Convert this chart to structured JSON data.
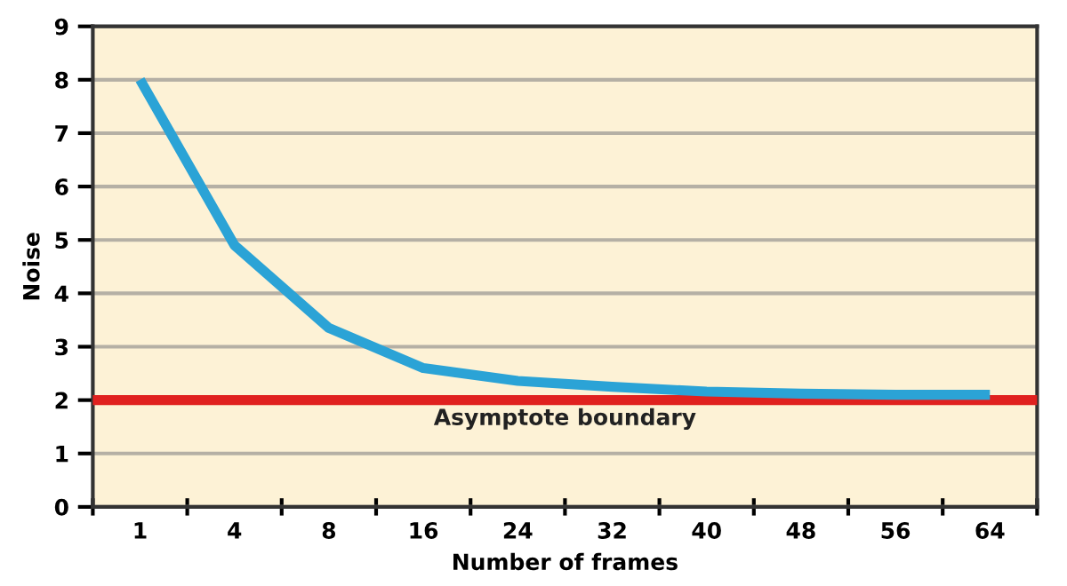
{
  "chart_data": {
    "type": "line",
    "xlabel": "Number of frames",
    "ylabel": "Noise",
    "categories": [
      "1",
      "4",
      "8",
      "16",
      "24",
      "32",
      "40",
      "48",
      "56",
      "64"
    ],
    "series": [
      {
        "color": "#2ba3d6",
        "values": [
          8,
          4.9,
          3.35,
          2.6,
          2.36,
          2.25,
          2.16,
          2.12,
          2.1,
          2.1
        ]
      }
    ],
    "ylim": [
      0,
      9
    ],
    "yticks": [
      0,
      1,
      2,
      3,
      4,
      5,
      6,
      7,
      8,
      9
    ],
    "grid": "y",
    "marker": "none",
    "line_style": "solid",
    "ref_lines": [
      {
        "axis": "y",
        "value": 2,
        "label": "Asymptote boundary",
        "color": "#e0211f"
      }
    ]
  }
}
